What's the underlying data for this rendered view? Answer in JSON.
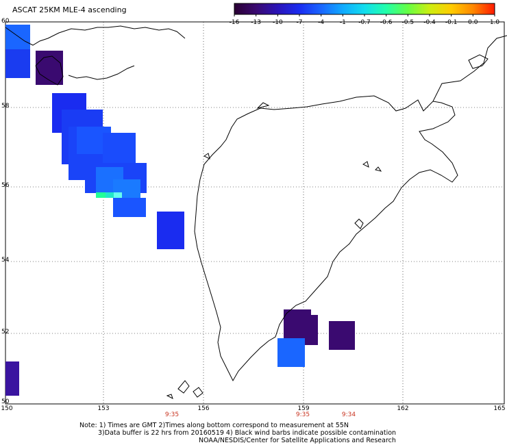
{
  "title": "ASCAT 25KM MLE-4 ascending",
  "colorbar": {
    "labels": [
      "-16",
      "-13",
      "-10",
      "-7",
      "-4",
      "-1",
      "-0.7",
      "-0.6",
      "-0.5",
      "-0.4",
      "-0.1",
      "0.0",
      "1.0"
    ],
    "colors": [
      "#2a0033",
      "#3a0a70",
      "#2a14b8",
      "#1a2cf0",
      "#1a66ff",
      "#10aaff",
      "#12ddee",
      "#22ffaa",
      "#66ff44",
      "#ccee11",
      "#ffcc00",
      "#ff8800",
      "#ff1a00"
    ]
  },
  "axes": {
    "lat_labels": [
      "60",
      "58",
      "56",
      "54",
      "52",
      "50"
    ],
    "lon_labels": [
      "150",
      "153",
      "156",
      "159",
      "162",
      "165"
    ],
    "lon_range": [
      150,
      165
    ],
    "lat_range": [
      50,
      60
    ]
  },
  "times": [
    "9:35",
    "9:35",
    "9:34"
  ],
  "notes": {
    "line1": "Note: 1) Times are GMT 2)Times along bottom correspond to measurement at 55N",
    "line2": "3)Data buffer is 22 hrs from 20160519 4) Black wind barbs indicate possible contamination",
    "line3": "NOAA/NESDIS/Center for Satellite Applications and Research"
  }
}
